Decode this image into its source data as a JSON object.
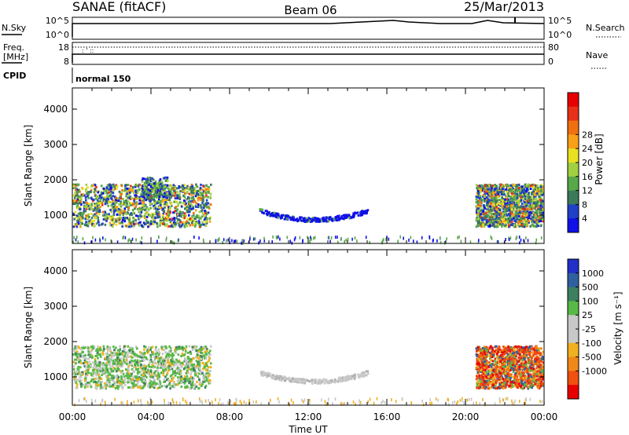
{
  "header": {
    "station": "SANAE (fitACF)",
    "beam": "Beam 06",
    "date": "25/Mar/2013"
  },
  "top_panels": {
    "nsky_label": "N.Sky",
    "nsearch_label": "N.Search",
    "nsky_ticks": [
      "10^5",
      "10^0"
    ],
    "nsearch_ticks": [
      "10^5",
      "10^0"
    ],
    "freq_label": "Freq.",
    "freq_unit": "[MHz]",
    "freq_ticks": [
      "18",
      "8"
    ],
    "nave_label": "Nave",
    "nave_ticks": [
      "80",
      "0"
    ],
    "cpid_label": "CPID",
    "cpid_value": "normal 150"
  },
  "chart_data": [
    {
      "type": "heatmap",
      "name": "power",
      "ylabel": "Slant Range [km]",
      "yticks": [
        1000,
        2000,
        3000,
        4000
      ],
      "ylim": [
        200,
        4600
      ],
      "xlim": [
        0,
        24
      ],
      "xticks": [
        "00:00",
        "04:00",
        "08:00",
        "12:00",
        "16:00",
        "20:00",
        "00:00"
      ],
      "xlabel": "",
      "colorbar": {
        "label": "Power [dB]",
        "ticks": [
          "4",
          "8",
          "12",
          "16",
          "20",
          "24",
          "28"
        ],
        "colors": [
          "#1010e8",
          "#2040c8",
          "#3c7a5a",
          "#58a84a",
          "#a0d040",
          "#e8e020",
          "#f8a018",
          "#f07010",
          "#e83018",
          "#e80000"
        ]
      },
      "regions": [
        {
          "t0": 0.0,
          "t1": 7.0,
          "r0": 700,
          "r1": 1900,
          "level": "strong"
        },
        {
          "t0": 3.5,
          "t1": 4.8,
          "r0": 1500,
          "r1": 2100,
          "level": "medium"
        },
        {
          "t0": 9.5,
          "t1": 15.0,
          "r0": 800,
          "r1": 1200,
          "level": "weak"
        },
        {
          "t0": 20.5,
          "t1": 24.0,
          "r0": 700,
          "r1": 1900,
          "level": "strong"
        }
      ]
    },
    {
      "type": "heatmap",
      "name": "velocity",
      "ylabel": "Slant Range [km]",
      "yticks": [
        1000,
        2000,
        3000,
        4000
      ],
      "ylim": [
        200,
        4600
      ],
      "xlim": [
        0,
        24
      ],
      "xticks": [
        "00:00",
        "04:00",
        "08:00",
        "12:00",
        "16:00",
        "20:00",
        "00:00"
      ],
      "xlabel": "Time UT",
      "colorbar": {
        "label": "Velocity [m s⁻¹]",
        "ticks": [
          "1000",
          "500",
          "100",
          "25",
          "-25",
          "-100",
          "-500",
          "-1000"
        ],
        "colors": [
          "#2030c8",
          "#3060a0",
          "#3c8060",
          "#58b848",
          "#c8c8c8",
          "#c8c8c8",
          "#f0b020",
          "#f08818",
          "#f05010",
          "#e80000"
        ]
      },
      "regions": [
        {
          "t0": 0.0,
          "t1": 7.0,
          "r0": 700,
          "r1": 1900,
          "level": "mixed"
        },
        {
          "t0": 9.5,
          "t1": 15.0,
          "r0": 800,
          "r1": 1200,
          "level": "grey"
        },
        {
          "t0": 20.5,
          "t1": 24.0,
          "r0": 700,
          "r1": 1900,
          "level": "red"
        }
      ]
    }
  ]
}
